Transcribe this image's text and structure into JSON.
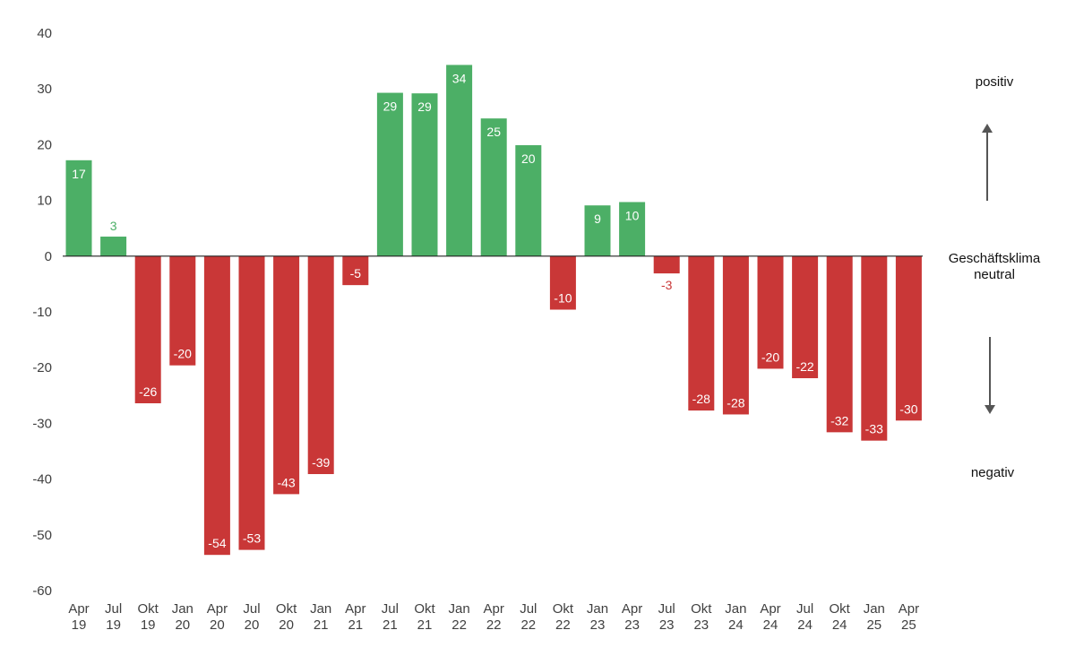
{
  "chart_data": {
    "type": "bar",
    "categories": [
      [
        "Apr",
        "19"
      ],
      [
        "Jul",
        "19"
      ],
      [
        "Okt",
        "19"
      ],
      [
        "Jan",
        "20"
      ],
      [
        "Apr",
        "20"
      ],
      [
        "Jul",
        "20"
      ],
      [
        "Okt",
        "20"
      ],
      [
        "Jan",
        "21"
      ],
      [
        "Apr",
        "21"
      ],
      [
        "Jul",
        "21"
      ],
      [
        "Okt",
        "21"
      ],
      [
        "Jan",
        "22"
      ],
      [
        "Apr",
        "22"
      ],
      [
        "Jul",
        "22"
      ],
      [
        "Okt",
        "22"
      ],
      [
        "Jan",
        "23"
      ],
      [
        "Apr",
        "23"
      ],
      [
        "Jul",
        "23"
      ],
      [
        "Okt",
        "23"
      ],
      [
        "Jan",
        "24"
      ],
      [
        "Apr",
        "24"
      ],
      [
        "Jul",
        "24"
      ],
      [
        "Okt",
        "24"
      ],
      [
        "Jan",
        "25"
      ],
      [
        "Apr",
        "25"
      ]
    ],
    "values": [
      17.2,
      3.5,
      -26.4,
      -19.6,
      -53.6,
      -52.7,
      -42.7,
      -39.1,
      -5.2,
      29.3,
      29.2,
      34.3,
      24.7,
      19.9,
      -9.6,
      9.1,
      9.7,
      -3.1,
      -27.7,
      -28.4,
      -20.2,
      -21.9,
      -31.6,
      -33.1,
      -29.5
    ],
    "labels": [
      "17",
      "3",
      "-26",
      "-20",
      "-54",
      "-53",
      "-43",
      "-39",
      "-5",
      "29",
      "29",
      "34",
      "25",
      "20",
      "-10",
      "9",
      "10",
      "-3",
      "-28",
      "-28",
      "-20",
      "-22",
      "-32",
      "-33",
      "-30"
    ],
    "y_ticks": [
      40,
      30,
      20,
      10,
      0,
      -10,
      -20,
      -30,
      -40,
      -50,
      -60
    ],
    "ylim": [
      -60,
      40
    ],
    "grid": false,
    "colors": {
      "positive": "#4caf66",
      "negative": "#c93737",
      "axis": "#222222"
    }
  },
  "annotations": {
    "top": "positiv",
    "middle_line1": "Geschäftsklima",
    "middle_line2": "neutral",
    "bottom": "negativ"
  }
}
